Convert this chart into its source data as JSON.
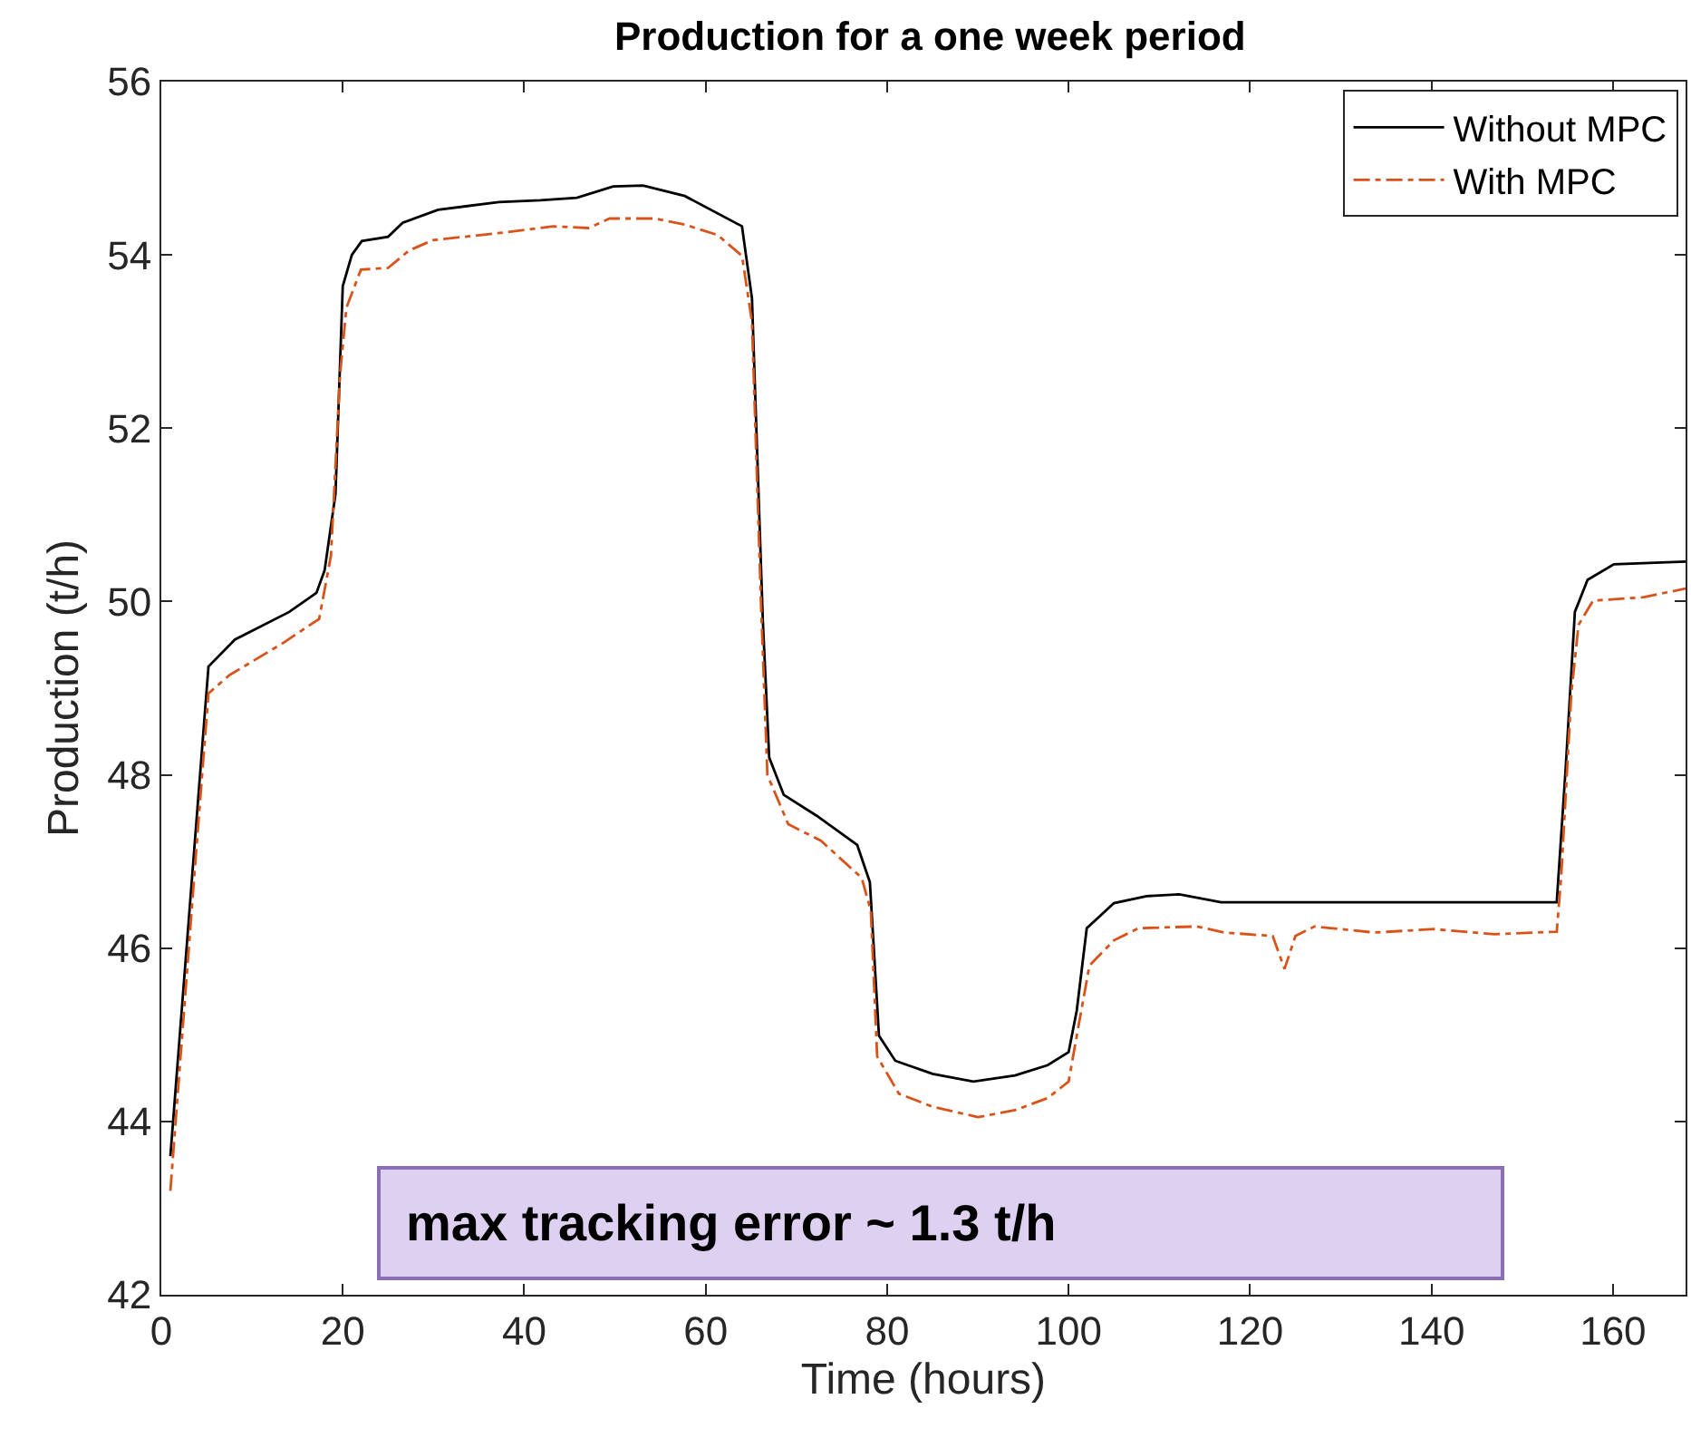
{
  "chart_data": {
    "type": "line",
    "title": "Production for a one week period",
    "xlabel": "Time (hours)",
    "ylabel": "Production (t/h)",
    "xlim": [
      0,
      168
    ],
    "xticks": [
      0,
      20,
      40,
      60,
      80,
      100,
      120,
      140,
      160
    ],
    "ylim": [
      42,
      56
    ],
    "yticks": [
      42,
      44,
      46,
      48,
      50,
      52,
      54,
      56
    ],
    "grid": false,
    "legend": "top right",
    "annotations": [
      "max tracking error ~ 1.3 t/h"
    ],
    "series": [
      {
        "name": "Without MPC",
        "color": "#000000",
        "line_style": "solid",
        "x": [
          1,
          3.2,
          5.2,
          8.1,
          14.1,
          17.1,
          18,
          19.2,
          20,
          21,
          22.1,
          25,
          26.6,
          30.5,
          37.2,
          41.8,
          45.8,
          49.8,
          53.1,
          57.7,
          64,
          65.1,
          66.3,
          67,
          68.6,
          72.2,
          76.7,
          78.1,
          79.1,
          80.9,
          85,
          89.5,
          94.1,
          97.7,
          100,
          100.9,
          102,
          105,
          108.6,
          112.2,
          116.8,
          118.5,
          153.8,
          154.8,
          155.8,
          157.2,
          160.1,
          168
        ],
        "values": [
          43.6,
          46.56,
          49.25,
          49.56,
          49.88,
          50.1,
          50.36,
          51.24,
          53.64,
          54.0,
          54.16,
          54.21,
          54.37,
          54.52,
          54.61,
          54.63,
          54.66,
          54.79,
          54.8,
          54.68,
          54.33,
          53.5,
          49.78,
          48.2,
          47.77,
          47.53,
          47.19,
          46.76,
          44.99,
          44.7,
          44.55,
          44.46,
          44.53,
          44.65,
          44.8,
          45.28,
          46.23,
          46.52,
          46.6,
          46.62,
          46.53,
          46.53,
          46.53,
          48.1,
          49.88,
          50.25,
          50.43,
          50.46
        ]
      },
      {
        "name": "With MPC",
        "color": "#d95319",
        "line_style": "dashdot",
        "x": [
          1,
          3.8,
          5.2,
          7.5,
          13.4,
          17.4,
          18.7,
          19.7,
          20.4,
          22,
          25,
          27.3,
          29.9,
          37.9,
          43.2,
          47.1,
          49.4,
          54.4,
          57.7,
          61.3,
          64,
          65.1,
          66.1,
          66.8,
          69.1,
          72.7,
          77.2,
          78.2,
          78.9,
          81.3,
          85,
          90,
          94.1,
          97.7,
          100,
          100.9,
          102.3,
          105,
          107.7,
          114.1,
          117.2,
          122.5,
          123.8,
          125,
          127.1,
          133.7,
          140.3,
          146.9,
          153.8,
          154.3,
          155.4,
          156.2,
          157.8,
          163.4,
          168
        ],
        "values": [
          43.2,
          47.06,
          48.94,
          49.15,
          49.52,
          49.8,
          50.53,
          52.62,
          53.39,
          53.83,
          53.85,
          54.05,
          54.17,
          54.26,
          54.33,
          54.31,
          54.42,
          54.42,
          54.35,
          54.23,
          53.99,
          53.23,
          49.97,
          48.0,
          47.43,
          47.24,
          46.81,
          46.43,
          44.75,
          44.32,
          44.17,
          44.05,
          44.13,
          44.27,
          44.46,
          44.99,
          45.8,
          46.09,
          46.23,
          46.25,
          46.18,
          46.14,
          45.76,
          46.14,
          46.25,
          46.18,
          46.22,
          46.16,
          46.19,
          46.84,
          48.93,
          49.73,
          50.01,
          50.05,
          50.15
        ]
      }
    ]
  }
}
